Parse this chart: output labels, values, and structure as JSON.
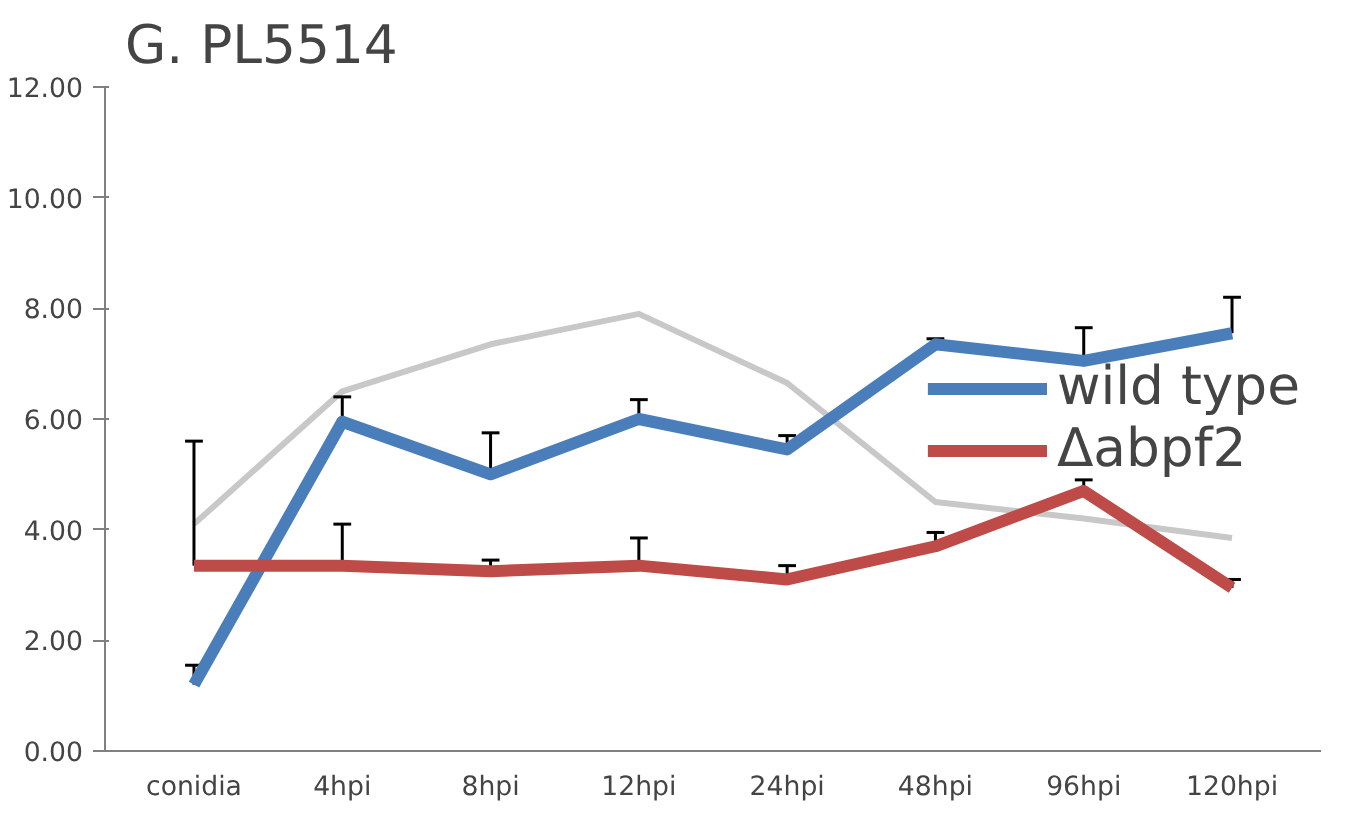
{
  "chart_data": {
    "type": "line",
    "title": "G. PL5514",
    "categories": [
      "conidia",
      "4hpi",
      "8hpi",
      "12hpi",
      "24hpi",
      "48hpi",
      "96hpi",
      "120hpi"
    ],
    "ylim": [
      0,
      12
    ],
    "yticks": [
      {
        "value": 0,
        "label": "0.00"
      },
      {
        "value": 2,
        "label": "2.00"
      },
      {
        "value": 4,
        "label": "4.00"
      },
      {
        "value": 6,
        "label": "6.00"
      },
      {
        "value": 8,
        "label": "8.00"
      },
      {
        "value": 10,
        "label": "10.00"
      },
      {
        "value": 12,
        "label": "12.00"
      }
    ],
    "grid": false,
    "legend": "right",
    "marker": "none",
    "line_style": "solid",
    "series": [
      {
        "color": "#c8c8c8",
        "values": [
          4.1,
          6.5,
          7.35,
          7.9,
          6.65,
          4.5,
          4.2,
          3.85
        ]
      },
      {
        "name": "wild type",
        "color": "#4a7ebb",
        "values": [
          1.2,
          5.95,
          5.0,
          6.0,
          5.45,
          7.35,
          7.05,
          7.55
        ],
        "errors": [
          [
            1.2,
            1.55
          ],
          [
            5.95,
            6.4
          ],
          [
            5.0,
            5.75
          ],
          [
            6.0,
            6.35
          ],
          [
            5.45,
            5.7
          ],
          [
            7.35,
            7.45
          ],
          [
            7.05,
            7.65
          ],
          [
            7.55,
            8.2
          ]
        ]
      },
      {
        "name": "Δabpf2",
        "color": "#be4b48",
        "values": [
          3.35,
          3.35,
          3.25,
          3.35,
          3.1,
          3.7,
          4.7,
          2.95
        ],
        "errors": [
          [
            3.35,
            5.6
          ],
          [
            3.35,
            4.1
          ],
          [
            3.25,
            3.45
          ],
          [
            3.35,
            3.85
          ],
          [
            3.1,
            3.35
          ],
          [
            3.7,
            3.95
          ],
          [
            4.7,
            4.9
          ],
          [
            2.95,
            3.1
          ]
        ]
      }
    ]
  }
}
